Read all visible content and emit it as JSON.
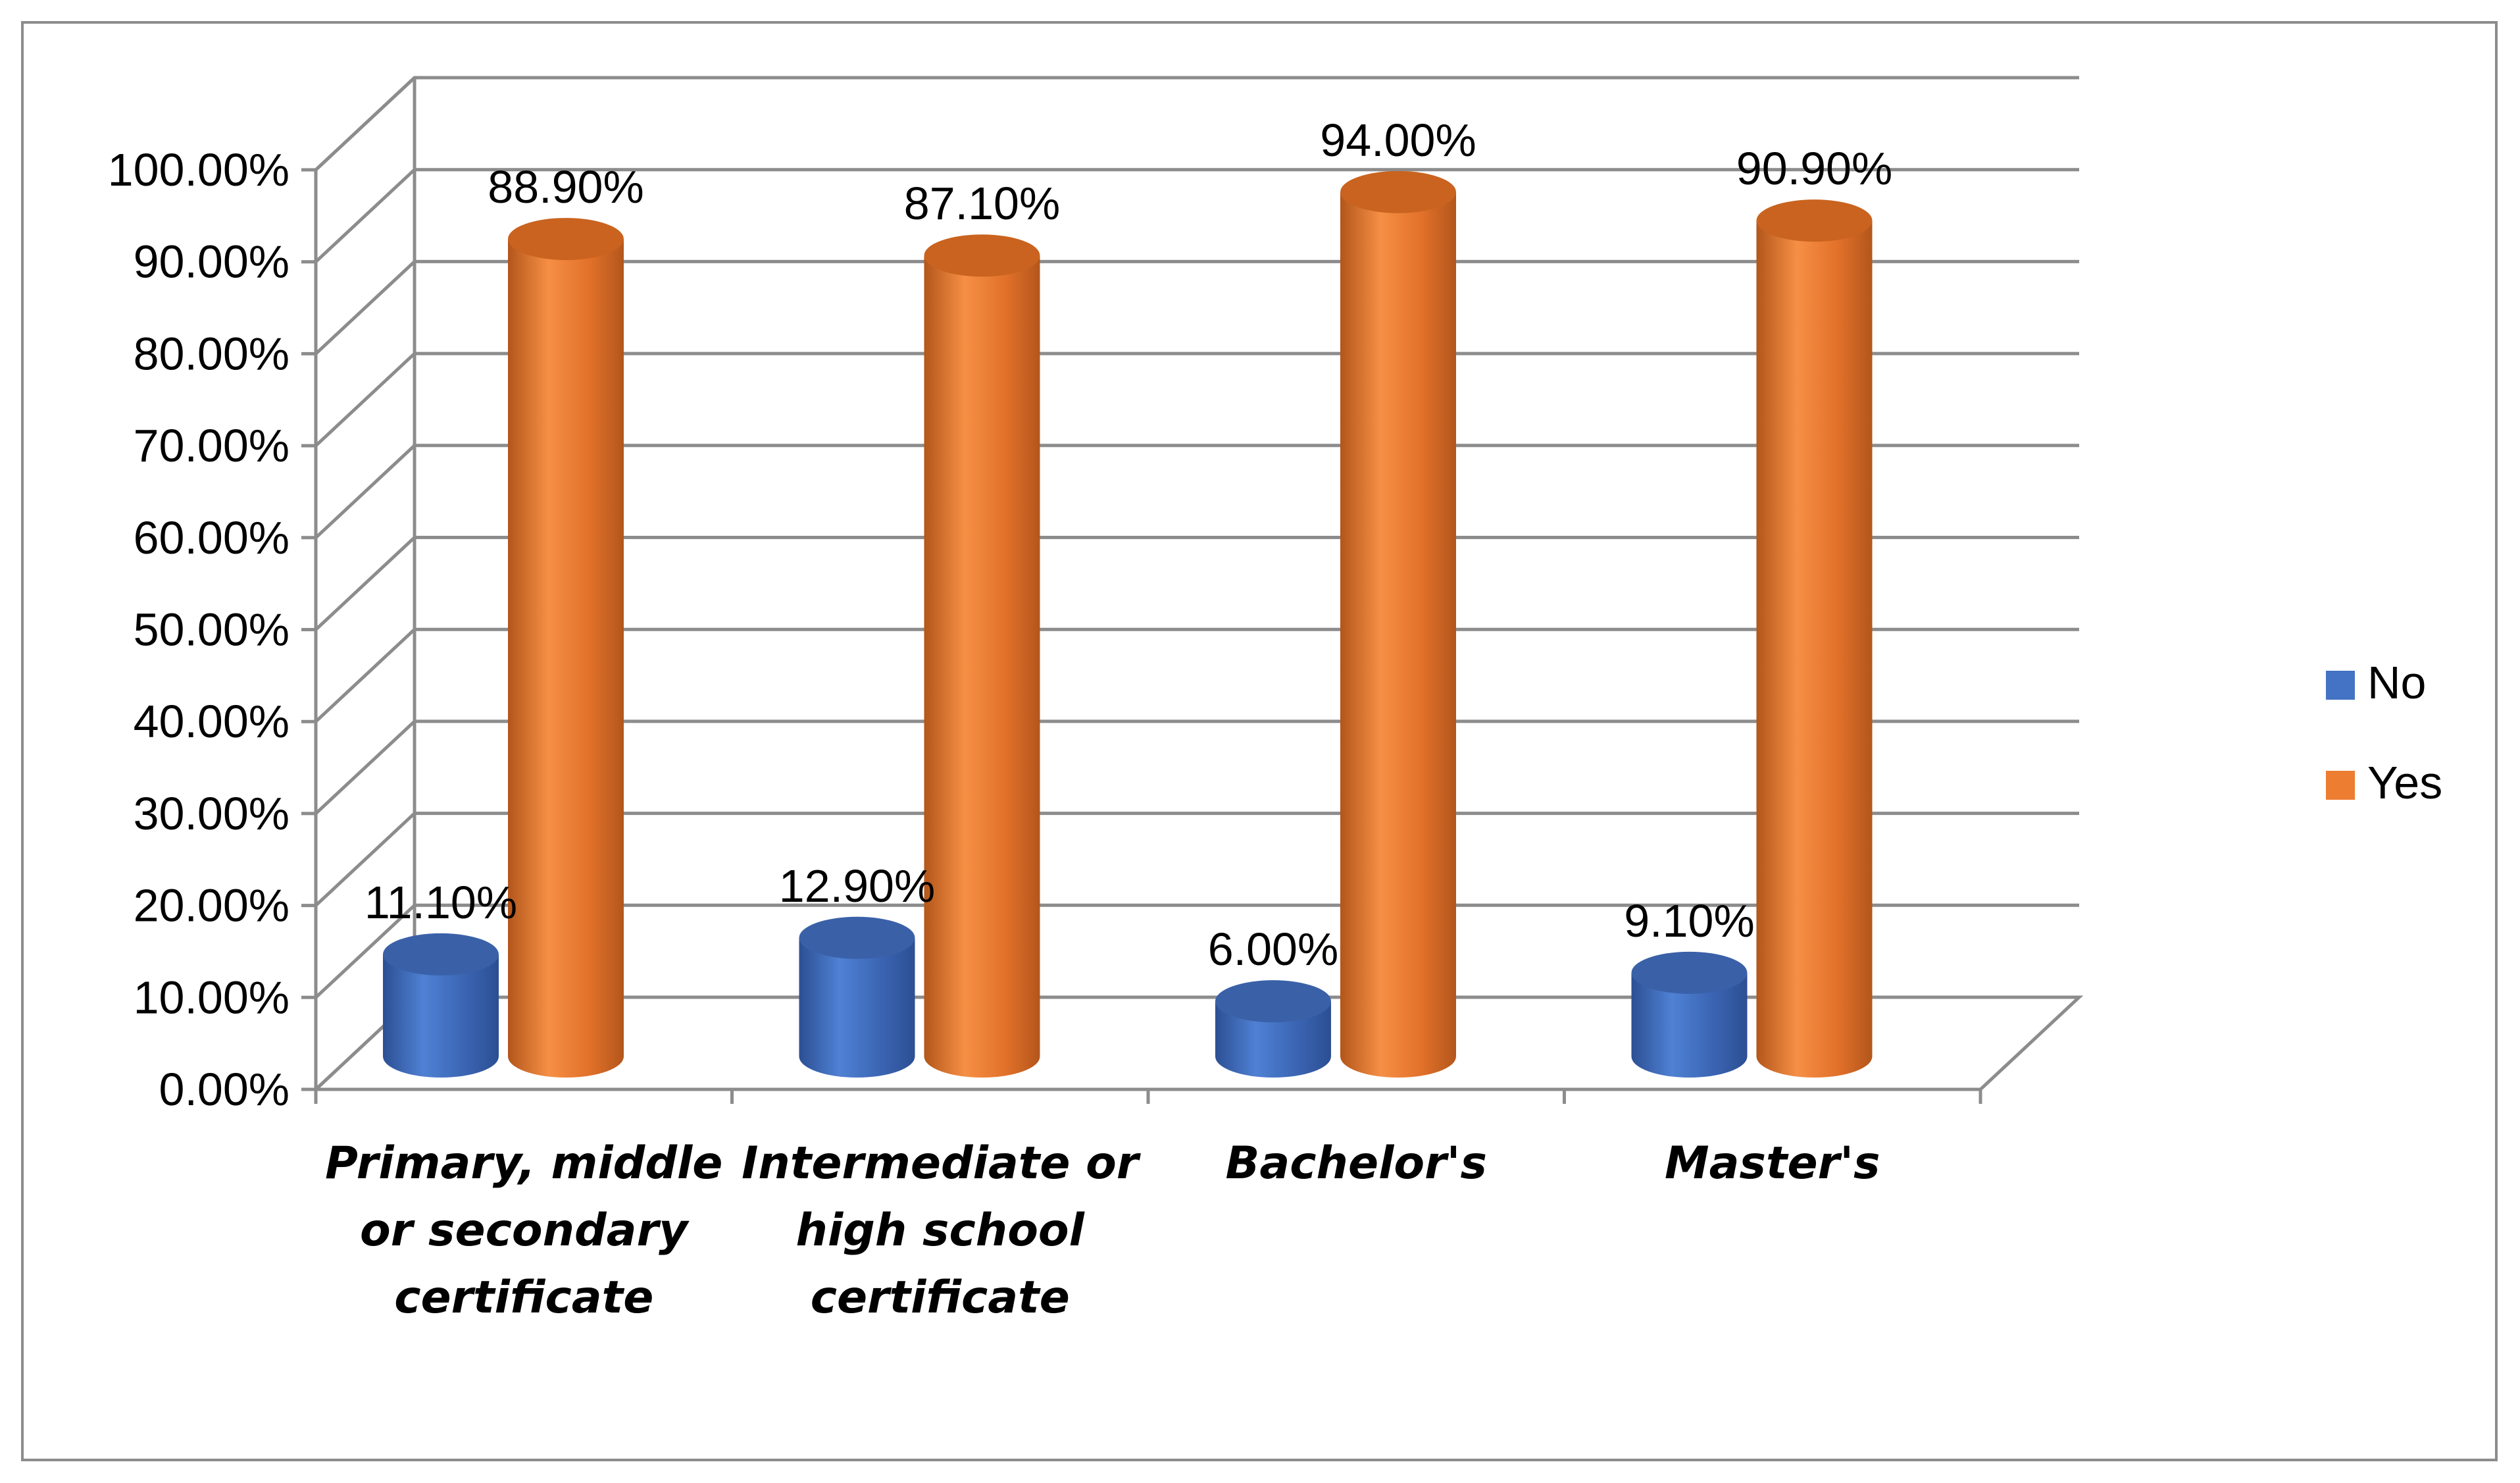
{
  "chart_data": {
    "type": "bar",
    "style": "3d-cylinder",
    "categories": [
      [
        "Primary, middle",
        "or secondary",
        "certificate"
      ],
      [
        "Intermediate or",
        "high school",
        "certificate"
      ],
      [
        "Bachelor's"
      ],
      [
        "Master's"
      ]
    ],
    "series": [
      {
        "name": "No",
        "color": "#4472c4",
        "values": [
          11.1,
          12.9,
          6.0,
          9.1
        ],
        "labels": [
          "11.10%",
          "12.90%",
          "6.00%",
          "9.10%"
        ]
      },
      {
        "name": "Yes",
        "color": "#ed7d31",
        "values": [
          88.9,
          87.1,
          94.0,
          90.9
        ],
        "labels": [
          "88.90%",
          "87.10%",
          "94.00%",
          "90.90%"
        ]
      }
    ],
    "ylim": [
      0,
      100
    ],
    "yticks": [
      0,
      10,
      20,
      30,
      40,
      50,
      60,
      70,
      80,
      90,
      100
    ],
    "ytick_labels": [
      "0.00%",
      "10.00%",
      "20.00%",
      "30.00%",
      "40.00%",
      "50.00%",
      "60.00%",
      "70.00%",
      "80.00%",
      "90.00%",
      "100.00%"
    ],
    "grid": true,
    "legend_position": "right"
  }
}
